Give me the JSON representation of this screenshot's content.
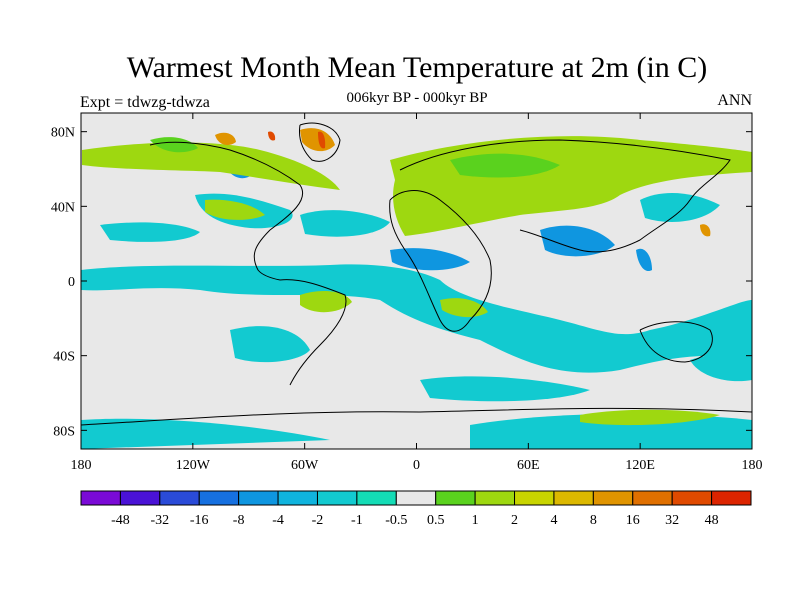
{
  "title": "Warmest Month Mean Temperature at 2m (in C)",
  "subtitle": "006kyr BP - 000kyr BP",
  "left_label": "Expt = tdwzg-tdwza",
  "right_label": "ANN",
  "map": {
    "lon_range": [
      -180,
      180
    ],
    "lat_range": [
      -90,
      90
    ],
    "x_ticks": [
      {
        "lon": -180,
        "label": "180"
      },
      {
        "lon": -120,
        "label": "120W"
      },
      {
        "lon": -60,
        "label": "60W"
      },
      {
        "lon": 0,
        "label": "0"
      },
      {
        "lon": 60,
        "label": "60E"
      },
      {
        "lon": 120,
        "label": "120E"
      },
      {
        "lon": 180,
        "label": "180"
      }
    ],
    "y_ticks": [
      {
        "lat": 80,
        "label": "80N"
      },
      {
        "lat": 40,
        "label": "40N"
      },
      {
        "lat": 0,
        "label": "0"
      },
      {
        "lat": -40,
        "label": "40S"
      },
      {
        "lat": -80,
        "label": "80S"
      }
    ],
    "background_color": "#e8e8e8"
  },
  "colorbar": {
    "colors": [
      "#7a0ad6",
      "#4a12d6",
      "#2a4bd8",
      "#1670e0",
      "#0f96e0",
      "#10b4de",
      "#12cad0",
      "#14dcb6",
      "#e8e8e8",
      "#5ad21e",
      "#9ed810",
      "#c8d400",
      "#dcb800",
      "#e09400",
      "#e07000",
      "#e04a00",
      "#dc2400"
    ],
    "labels": [
      "-48",
      "-32",
      "-16",
      "-8",
      "-4",
      "-2",
      "-1",
      "-0.5",
      "0.5",
      "1",
      "2",
      "4",
      "8",
      "16",
      "32",
      "48"
    ]
  }
}
